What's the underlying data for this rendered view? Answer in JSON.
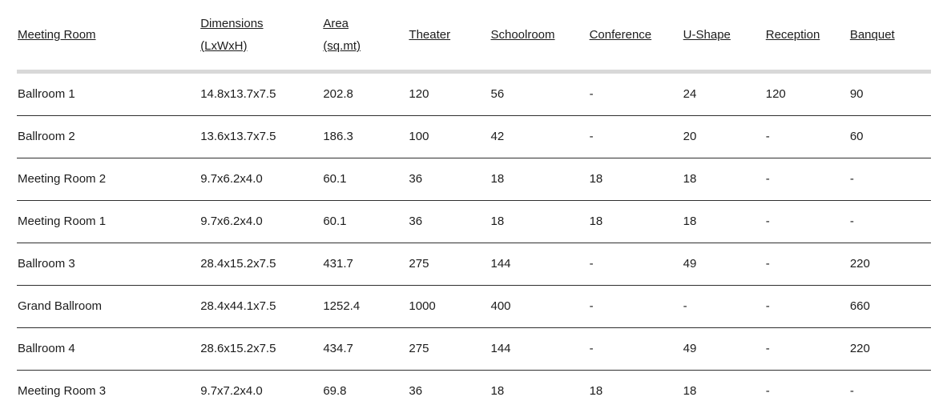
{
  "page": {
    "background_color": "#ffffff",
    "text_color": "#1c1c1c",
    "header_divider_color": "#d8d8d8",
    "row_divider_color": "#2f2f2f",
    "empty_value_symbol": "-"
  },
  "capacity_table": {
    "columns": [
      {
        "label": "Meeting Room",
        "sublabel": ""
      },
      {
        "label": "Dimensions",
        "sublabel": "(LxWxH)"
      },
      {
        "label": "Area",
        "sublabel": "(sq.mt)"
      },
      {
        "label": "Theater",
        "sublabel": ""
      },
      {
        "label": "Schoolroom",
        "sublabel": ""
      },
      {
        "label": "Conference",
        "sublabel": ""
      },
      {
        "label": "U-Shape",
        "sublabel": ""
      },
      {
        "label": "Reception",
        "sublabel": ""
      },
      {
        "label": "Banquet",
        "sublabel": ""
      }
    ],
    "rows": [
      [
        "Ballroom 1",
        "14.8x13.7x7.5",
        "202.8",
        "120",
        "56",
        "-",
        "24",
        "120",
        "90"
      ],
      [
        "Ballroom 2",
        "13.6x13.7x7.5",
        "186.3",
        "100",
        "42",
        "-",
        "20",
        "-",
        "60"
      ],
      [
        "Meeting Room 2",
        "9.7x6.2x4.0",
        "60.1",
        "36",
        "18",
        "18",
        "18",
        "-",
        "-"
      ],
      [
        "Meeting Room 1",
        "9.7x6.2x4.0",
        "60.1",
        "36",
        "18",
        "18",
        "18",
        "-",
        "-"
      ],
      [
        "Ballroom 3",
        "28.4x15.2x7.5",
        "431.7",
        "275",
        "144",
        "-",
        "49",
        "-",
        "220"
      ],
      [
        "Grand Ballroom",
        "28.4x44.1x7.5",
        "1252.4",
        "1000",
        "400",
        "-",
        "-",
        "-",
        "660"
      ],
      [
        "Ballroom 4",
        "28.6x15.2x7.5",
        "434.7",
        "275",
        "144",
        "-",
        "49",
        "-",
        "220"
      ],
      [
        "Meeting Room 3",
        "9.7x7.2x4.0",
        "69.8",
        "36",
        "18",
        "18",
        "18",
        "-",
        "-"
      ]
    ]
  }
}
